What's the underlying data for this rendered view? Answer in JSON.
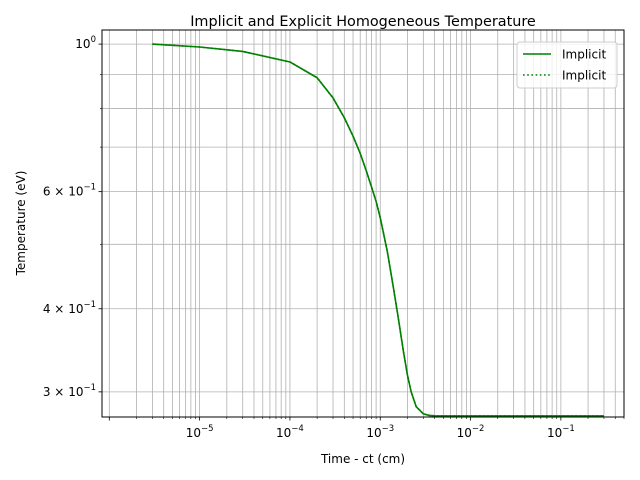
{
  "chart_data": {
    "type": "line",
    "title": "Implicit and Explicit Homogeneous Temperature",
    "xlabel": "Time - ct (cm)",
    "ylabel": "Temperature (eV)",
    "xscale": "log",
    "yscale": "log",
    "xlim": [
      8.3e-07,
      0.5
    ],
    "ylim": [
      0.275,
      1.05
    ],
    "xticks": [
      {
        "value": 1e-05,
        "base": "10",
        "exp": "−5"
      },
      {
        "value": 0.0001,
        "base": "10",
        "exp": "−4"
      },
      {
        "value": 0.001,
        "base": "10",
        "exp": "−3"
      },
      {
        "value": 0.01,
        "base": "10",
        "exp": "−2"
      },
      {
        "value": 0.1,
        "base": "10",
        "exp": "−1"
      }
    ],
    "yticks": [
      {
        "value": 1.0,
        "base": "10",
        "exp": "0",
        "mantissa": ""
      },
      {
        "value": 0.6,
        "base": "10",
        "exp": "−1",
        "mantissa": "6 × "
      },
      {
        "value": 0.4,
        "base": "10",
        "exp": "−1",
        "mantissa": "4 × "
      },
      {
        "value": 0.3,
        "base": "10",
        "exp": "−1",
        "mantissa": "3 × "
      }
    ],
    "y_minor_ticks": [
      0.5,
      0.7,
      0.8,
      0.9
    ],
    "grid": "both major and minor",
    "legend_placement": "top-right",
    "series": [
      {
        "name": "Implicit",
        "style": "solid",
        "color": "#008000",
        "x": [
          3e-06,
          1e-05,
          3e-05,
          0.0001,
          0.0002,
          0.0003,
          0.0004,
          0.0005,
          0.0006,
          0.0007,
          0.0008,
          0.0009,
          0.001,
          0.0012,
          0.0014,
          0.0016,
          0.0018,
          0.002,
          0.0022,
          0.0025,
          0.003,
          0.0035,
          0.004,
          0.005,
          0.01,
          0.1,
          0.3
        ],
        "y": [
          1.0,
          0.99,
          0.975,
          0.94,
          0.89,
          0.83,
          0.775,
          0.727,
          0.685,
          0.645,
          0.61,
          0.58,
          0.548,
          0.487,
          0.43,
          0.384,
          0.346,
          0.318,
          0.3,
          0.285,
          0.278,
          0.2765,
          0.2761,
          0.276,
          0.276,
          0.276,
          0.276
        ]
      },
      {
        "name": "Implicit",
        "style": "dotted",
        "color": "#008000",
        "x": [
          3e-06,
          1e-05,
          3e-05,
          0.0001,
          0.0002,
          0.0003,
          0.0004,
          0.0005,
          0.0006,
          0.0007,
          0.0008,
          0.0009,
          0.001,
          0.0012,
          0.0014,
          0.0016,
          0.0018,
          0.002,
          0.0022,
          0.0025,
          0.003,
          0.0035,
          0.004,
          0.005,
          0.01,
          0.1,
          0.3
        ],
        "y": [
          1.0,
          0.99,
          0.975,
          0.94,
          0.89,
          0.83,
          0.775,
          0.727,
          0.685,
          0.645,
          0.61,
          0.58,
          0.548,
          0.487,
          0.43,
          0.384,
          0.346,
          0.318,
          0.3,
          0.285,
          0.278,
          0.2765,
          0.2761,
          0.276,
          0.276,
          0.276,
          0.276
        ]
      }
    ]
  }
}
